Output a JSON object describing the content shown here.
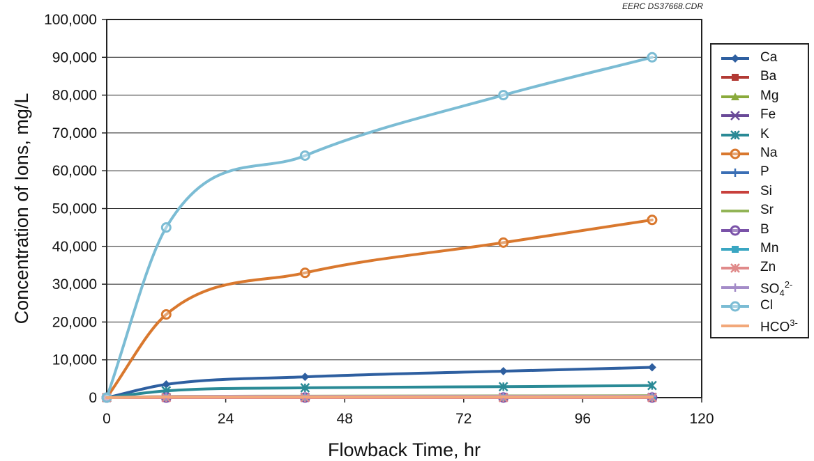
{
  "credit": "EERC DS37668.CDR",
  "chart_data": {
    "type": "line",
    "title": "",
    "xlabel": "Flowback Time, hr",
    "ylabel": "Concentration of Ions, mg/L",
    "xlim": [
      0,
      120
    ],
    "ylim": [
      0,
      100000
    ],
    "x_ticks": [
      0,
      24,
      48,
      72,
      96,
      120
    ],
    "y_ticks": [
      0,
      10000,
      20000,
      30000,
      40000,
      50000,
      60000,
      70000,
      80000,
      90000,
      100000
    ],
    "x_tick_labels": [
      "0",
      "24",
      "48",
      "72",
      "96",
      "120"
    ],
    "y_tick_labels": [
      "0",
      "10,000",
      "20,000",
      "30,000",
      "40,000",
      "50,000",
      "60,000",
      "70,000",
      "80,000",
      "90,000",
      "100,000"
    ],
    "grid": "horizontal",
    "legend": "right",
    "x": [
      0,
      12,
      40,
      80,
      110
    ],
    "series": [
      {
        "name": "Ca",
        "label_main": "Ca",
        "marker": "diamond",
        "color": "#2e5fa0",
        "values": [
          0,
          3500,
          5500,
          7000,
          8000
        ]
      },
      {
        "name": "Ba",
        "label_main": "Ba",
        "marker": "square",
        "color": "#b23a34",
        "values": [
          0,
          50,
          50,
          50,
          50
        ]
      },
      {
        "name": "Mg",
        "label_main": "Mg",
        "marker": "triangle",
        "color": "#8aaa3c",
        "values": [
          0,
          300,
          400,
          450,
          500
        ]
      },
      {
        "name": "Fe",
        "label_main": "Fe",
        "marker": "x",
        "color": "#6a4a98",
        "values": [
          0,
          60,
          80,
          90,
          100
        ]
      },
      {
        "name": "K",
        "label_main": "K",
        "marker": "star",
        "color": "#2a8a96",
        "values": [
          0,
          1800,
          2600,
          2900,
          3200
        ]
      },
      {
        "name": "Na",
        "label_main": "Na",
        "marker": "circle",
        "color": "#d9782e",
        "values": [
          0,
          22000,
          33000,
          41000,
          47000
        ]
      },
      {
        "name": "P",
        "label_main": "P",
        "marker": "plus",
        "color": "#3b6fb5",
        "values": [
          0,
          5,
          5,
          5,
          5
        ]
      },
      {
        "name": "Si",
        "label_main": "Si",
        "marker": "line",
        "color": "#c8403c",
        "values": [
          0,
          20,
          20,
          20,
          20
        ]
      },
      {
        "name": "Sr",
        "label_main": "Sr",
        "marker": "line",
        "color": "#92b456",
        "values": [
          0,
          150,
          250,
          300,
          350
        ]
      },
      {
        "name": "B",
        "label_main": "B",
        "marker": "circle",
        "color": "#7a52a8",
        "values": [
          0,
          20,
          30,
          30,
          30
        ]
      },
      {
        "name": "Mn",
        "label_main": "Mn",
        "marker": "square",
        "color": "#3aa6c2",
        "values": [
          0,
          5,
          5,
          5,
          5
        ]
      },
      {
        "name": "Zn",
        "label_main": "Zn",
        "marker": "star",
        "color": "#e08a8a",
        "values": [
          0,
          5,
          5,
          5,
          5
        ]
      },
      {
        "name": "SO42-",
        "label_main": "SO",
        "label_sub": "4",
        "label_sup": "2-",
        "marker": "plus",
        "color": "#a48cc8",
        "values": [
          0,
          300,
          350,
          400,
          400
        ]
      },
      {
        "name": "Cl",
        "label_main": "Cl",
        "marker": "circle",
        "color": "#7bbcd4",
        "values": [
          0,
          45000,
          64000,
          80000,
          90000
        ]
      },
      {
        "name": "HCO3-",
        "label_main": "HCO",
        "label_sup": "3-",
        "marker": "line",
        "color": "#f2a87a",
        "values": [
          0,
          200,
          200,
          200,
          200
        ]
      }
    ]
  }
}
